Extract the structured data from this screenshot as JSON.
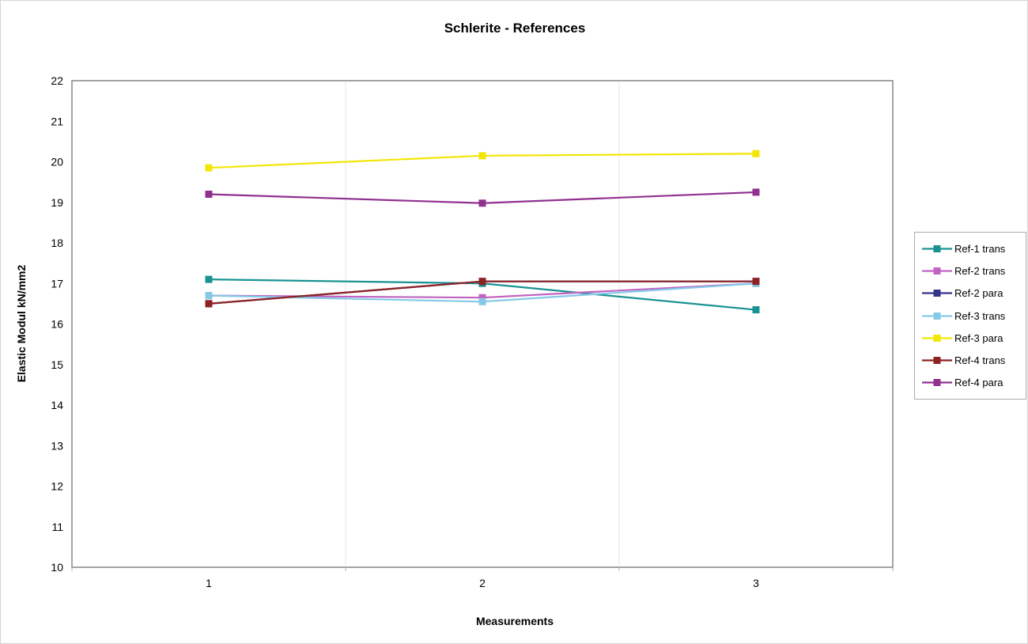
{
  "title": "Schlerite - References",
  "chart_data": {
    "type": "line",
    "title": "Schlerite - References",
    "xlabel": "Measurements",
    "ylabel": "Elastic Modul kN/mm2",
    "categories": [
      "1",
      "2",
      "3"
    ],
    "ylim": [
      10,
      22
    ],
    "ytick_step": 1,
    "grid": "vertical category-boundary gridlines only",
    "legend_position": "right",
    "marker": "square",
    "series": [
      {
        "name": "Ref-1 trans",
        "color": "#1A9292",
        "values": [
          17.1,
          17.0,
          16.35
        ]
      },
      {
        "name": "Ref-2 trans",
        "color": "#C263C2",
        "values": [
          16.7,
          16.65,
          17.0
        ]
      },
      {
        "name": "Ref-2 para",
        "color": "#333387",
        "values": [
          16.5,
          17.05,
          17.05
        ]
      },
      {
        "name": "Ref-3 trans",
        "color": "#84CAE8",
        "values": [
          16.7,
          16.55,
          17.0
        ]
      },
      {
        "name": "Ref-3 para",
        "color": "#F3E604",
        "values": [
          19.85,
          20.15,
          20.2
        ]
      },
      {
        "name": "Ref-4 trans",
        "color": "#8E2323",
        "values": [
          16.5,
          17.05,
          17.05
        ]
      },
      {
        "name": "Ref-4 para",
        "color": "#90308F",
        "values": [
          19.2,
          18.98,
          19.25
        ]
      }
    ],
    "colors": {
      "plot_border": "#8C8C8C",
      "gridline": "#ECECEC",
      "tick": "#BDBDBD",
      "background": "#FFFFFF"
    }
  }
}
